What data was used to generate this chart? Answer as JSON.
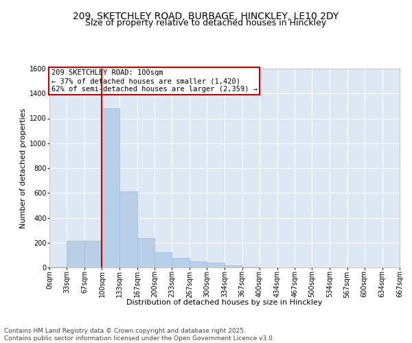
{
  "title1": "209, SKETCHLEY ROAD, BURBAGE, HINCKLEY, LE10 2DY",
  "title2": "Size of property relative to detached houses in Hinckley",
  "xlabel": "Distribution of detached houses by size in Hinckley",
  "ylabel": "Number of detached properties",
  "footnote1": "Contains HM Land Registry data © Crown copyright and database right 2025.",
  "footnote2": "Contains public sector information licensed under the Open Government Licence v3.0.",
  "annotation_line1": "209 SKETCHLEY ROAD: 100sqm",
  "annotation_line2": "← 37% of detached houses are smaller (1,420)",
  "annotation_line3": "62% of semi-detached houses are larger (2,359) →",
  "bar_color": "#b8cfe8",
  "bar_edge_color": "#9ab8d8",
  "vline_color": "#cc0000",
  "annotation_box_color": "#cc0000",
  "background_color": "#dde8f4",
  "bins": [
    0,
    33,
    67,
    100,
    133,
    167,
    200,
    233,
    267,
    300,
    334,
    367,
    400,
    434,
    467,
    500,
    534,
    567,
    600,
    634,
    667
  ],
  "bin_labels": [
    "0sqm",
    "33sqm",
    "67sqm",
    "100sqm",
    "133sqm",
    "167sqm",
    "200sqm",
    "233sqm",
    "267sqm",
    "300sqm",
    "334sqm",
    "367sqm",
    "400sqm",
    "434sqm",
    "467sqm",
    "500sqm",
    "534sqm",
    "567sqm",
    "600sqm",
    "634sqm",
    "667sqm"
  ],
  "bar_heights": [
    5,
    215,
    215,
    1280,
    610,
    235,
    120,
    75,
    50,
    40,
    18,
    5,
    2,
    0,
    0,
    2,
    0,
    0,
    0,
    0
  ],
  "ylim": [
    0,
    1600
  ],
  "yticks": [
    0,
    200,
    400,
    600,
    800,
    1000,
    1200,
    1400,
    1600
  ],
  "vline_x": 100,
  "title_fontsize": 10,
  "subtitle_fontsize": 9,
  "axis_label_fontsize": 8,
  "tick_fontsize": 7,
  "annotation_fontsize": 7.5,
  "footnote_fontsize": 6.5
}
